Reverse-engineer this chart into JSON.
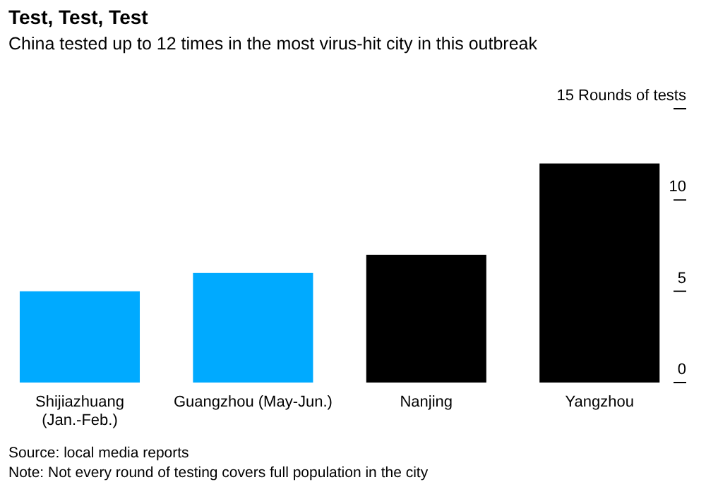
{
  "chart_data": {
    "type": "bar",
    "title": "Test, Test, Test",
    "subtitle": "China tested up to 12 times in the most virus-hit city in this outbreak",
    "categories": [
      "Shijiazhuang (Jan.-Feb.)",
      "Guangzhou (May-Jun.)",
      "Nanjing",
      "Yangzhou"
    ],
    "values": [
      5,
      6,
      7,
      12
    ],
    "colors": [
      "#00aaff",
      "#00aaff",
      "#000000",
      "#000000"
    ],
    "ylim": [
      0,
      15
    ],
    "yticks": [
      0,
      5,
      10,
      {
        "value": 15,
        "label": "15 Rounds of tests"
      }
    ],
    "grid": false,
    "annotations": [
      "Source: local media reports",
      "Note: Not every round of testing covers full population in the city"
    ]
  }
}
